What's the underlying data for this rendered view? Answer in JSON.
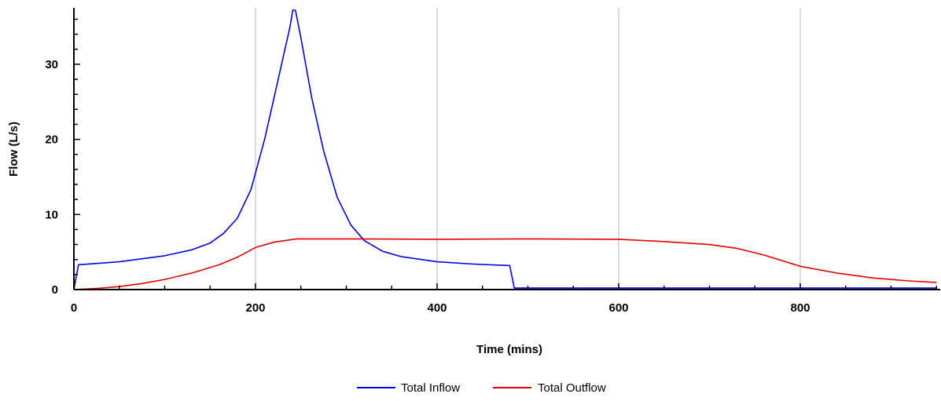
{
  "chart_data": {
    "type": "line",
    "title": "",
    "xlabel": "Time (mins)",
    "ylabel": "Flow (L/s)",
    "xlim": [
      0,
      950
    ],
    "ylim": [
      0,
      37
    ],
    "xticks": [
      0,
      200,
      400,
      600,
      800
    ],
    "yticks": [
      0,
      10,
      20,
      30
    ],
    "grid": "vertical",
    "legend_position": "bottom-center",
    "series": [
      {
        "name": "Total Inflow",
        "color": "#0000dd",
        "x": [
          0,
          5,
          50,
          100,
          130,
          150,
          165,
          180,
          195,
          210,
          225,
          238,
          241,
          244,
          250,
          262,
          275,
          290,
          305,
          320,
          340,
          360,
          400,
          440,
          480,
          485,
          500,
          600,
          700,
          800,
          900,
          950
        ],
        "y": [
          0,
          3.3,
          3.7,
          4.5,
          5.3,
          6.2,
          7.5,
          9.5,
          13.3,
          20,
          28,
          35,
          37.2,
          37.2,
          33.5,
          25.5,
          18.5,
          12.3,
          8.6,
          6.5,
          5.1,
          4.4,
          3.7,
          3.4,
          3.2,
          0.2,
          0.2,
          0.2,
          0.2,
          0.2,
          0.2,
          0.2
        ]
      },
      {
        "name": "Total Outflow",
        "color": "#e00000",
        "x": [
          0,
          25,
          50,
          75,
          100,
          130,
          160,
          180,
          200,
          220,
          245,
          300,
          400,
          500,
          600,
          650,
          700,
          730,
          760,
          800,
          840,
          880,
          920,
          950
        ],
        "y": [
          0,
          0.15,
          0.4,
          0.8,
          1.35,
          2.2,
          3.3,
          4.3,
          5.6,
          6.3,
          6.75,
          6.75,
          6.7,
          6.75,
          6.7,
          6.4,
          6.0,
          5.5,
          4.6,
          3.1,
          2.2,
          1.55,
          1.15,
          0.95
        ]
      }
    ]
  },
  "legend": {
    "inflow_label": "Total Inflow",
    "outflow_label": "Total Outflow"
  }
}
